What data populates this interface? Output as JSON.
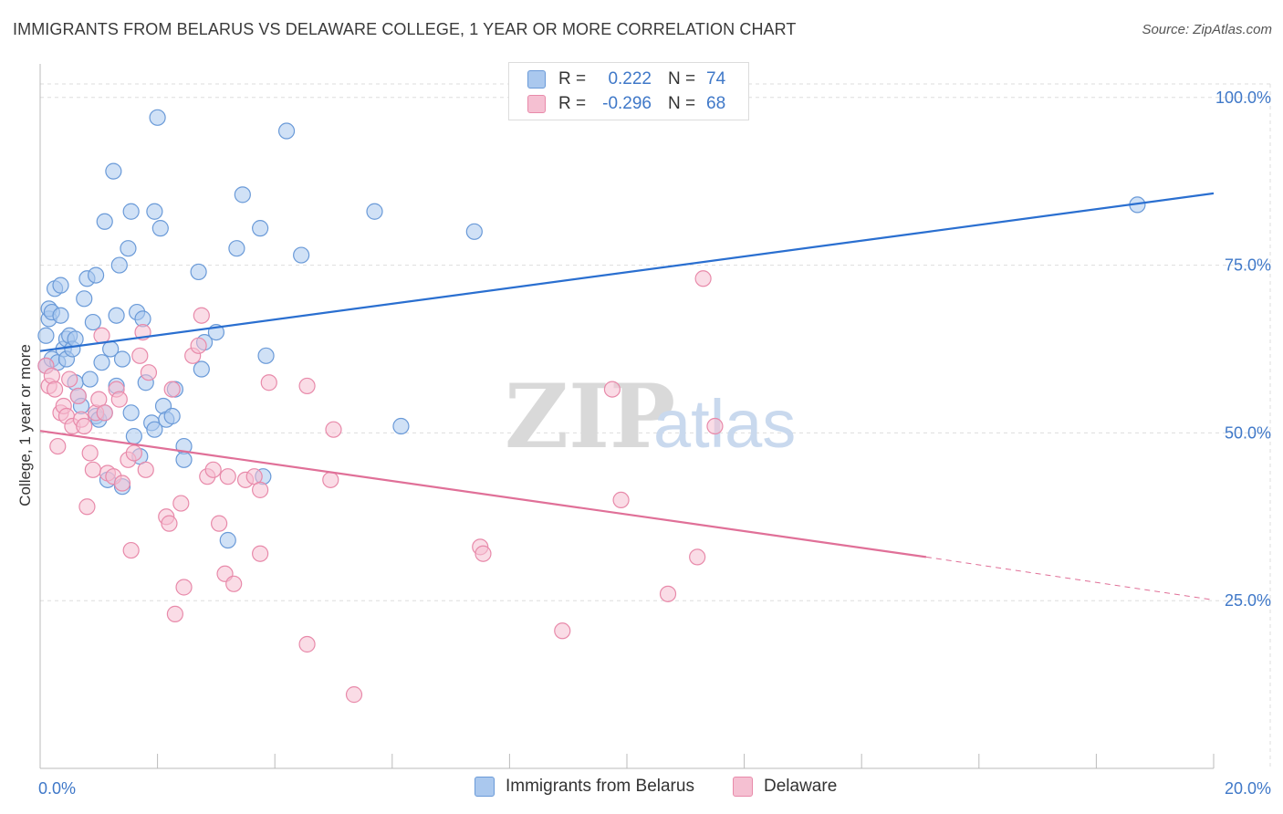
{
  "title": "IMMIGRANTS FROM BELARUS VS DELAWARE COLLEGE, 1 YEAR OR MORE CORRELATION CHART",
  "source": "Source: ZipAtlas.com",
  "watermark": {
    "zip": "ZIP",
    "atlas": "atlas"
  },
  "legend": {
    "belarus": {
      "r_label": "R =",
      "r_value": "0.222",
      "n_label": "N =",
      "n_value": "74"
    },
    "delaware": {
      "r_label": "R =",
      "r_value": "-0.296",
      "n_label": "N =",
      "n_value": "68"
    }
  },
  "bottom_legend": {
    "belarus": "Immigrants from Belarus",
    "delaware": "Delaware"
  },
  "colors": {
    "belarus_fill": "#aac8ee",
    "belarus_stroke": "#6a9ad8",
    "belarus_line": "#2a6fd0",
    "delaware_fill": "#f5c0d2",
    "delaware_stroke": "#e88aaa",
    "delaware_line": "#e07098",
    "tick_text": "#3f78c8",
    "grid": "#dddddd"
  },
  "chart_data": {
    "type": "scatter",
    "title": "IMMIGRANTS FROM BELARUS VS DELAWARE COLLEGE, 1 YEAR OR MORE CORRELATION CHART",
    "xlabel": "",
    "ylabel": "College, 1 year or more",
    "xlim": [
      0,
      20
    ],
    "ylim": [
      0,
      105
    ],
    "x_tick_labels": [
      {
        "value": 0,
        "label": "0.0%"
      },
      {
        "value": 20,
        "label": "20.0%"
      }
    ],
    "y_tick_labels": [
      {
        "value": 25,
        "label": "25.0%"
      },
      {
        "value": 50,
        "label": "50.0%"
      },
      {
        "value": 75,
        "label": "75.0%"
      },
      {
        "value": 100,
        "label": "100.0%"
      }
    ],
    "series": [
      {
        "name": "Immigrants from Belarus",
        "points": [
          [
            0.1,
            64.5
          ],
          [
            0.1,
            60
          ],
          [
            0.15,
            67
          ],
          [
            0.15,
            68.5
          ],
          [
            0.2,
            61
          ],
          [
            0.2,
            68
          ],
          [
            0.25,
            71.5
          ],
          [
            0.3,
            60.5
          ],
          [
            0.35,
            72
          ],
          [
            0.35,
            67.5
          ],
          [
            0.4,
            62.5
          ],
          [
            0.45,
            61
          ],
          [
            0.45,
            64
          ],
          [
            0.5,
            64.5
          ],
          [
            0.55,
            62.5
          ],
          [
            0.6,
            64
          ],
          [
            0.6,
            57.5
          ],
          [
            0.65,
            55.5
          ],
          [
            0.7,
            54
          ],
          [
            0.75,
            70
          ],
          [
            0.8,
            73
          ],
          [
            0.85,
            58
          ],
          [
            0.9,
            66.5
          ],
          [
            0.95,
            73.5
          ],
          [
            0.95,
            52.5
          ],
          [
            1.0,
            52
          ],
          [
            1.05,
            60.5
          ],
          [
            1.1,
            81.5
          ],
          [
            1.1,
            53
          ],
          [
            1.15,
            43
          ],
          [
            1.2,
            62.5
          ],
          [
            1.25,
            89
          ],
          [
            1.3,
            57
          ],
          [
            1.3,
            67.5
          ],
          [
            1.35,
            75
          ],
          [
            1.4,
            61
          ],
          [
            1.4,
            42
          ],
          [
            1.5,
            77.5
          ],
          [
            1.55,
            83
          ],
          [
            1.55,
            53
          ],
          [
            1.6,
            49.5
          ],
          [
            1.65,
            68
          ],
          [
            1.7,
            46.5
          ],
          [
            1.75,
            67
          ],
          [
            1.8,
            57.5
          ],
          [
            1.9,
            51.5
          ],
          [
            1.95,
            50.5
          ],
          [
            1.95,
            83
          ],
          [
            2.0,
            97
          ],
          [
            2.05,
            80.5
          ],
          [
            2.1,
            54
          ],
          [
            2.15,
            52
          ],
          [
            2.25,
            52.5
          ],
          [
            2.3,
            56.5
          ],
          [
            2.45,
            48
          ],
          [
            2.45,
            46
          ],
          [
            2.7,
            74
          ],
          [
            2.75,
            59.5
          ],
          [
            2.8,
            63.5
          ],
          [
            3.0,
            65
          ],
          [
            3.2,
            34
          ],
          [
            3.35,
            77.5
          ],
          [
            3.45,
            85.5
          ],
          [
            3.75,
            80.5
          ],
          [
            3.8,
            43.5
          ],
          [
            3.85,
            61.5
          ],
          [
            4.2,
            95
          ],
          [
            4.45,
            76.5
          ],
          [
            5.7,
            83
          ],
          [
            6.15,
            51
          ],
          [
            7.4,
            80
          ],
          [
            18.7,
            84
          ]
        ]
      },
      {
        "name": "Delaware",
        "points": [
          [
            0.1,
            60
          ],
          [
            0.15,
            57
          ],
          [
            0.2,
            58.5
          ],
          [
            0.25,
            56.5
          ],
          [
            0.3,
            48
          ],
          [
            0.35,
            53
          ],
          [
            0.4,
            54
          ],
          [
            0.45,
            52.5
          ],
          [
            0.5,
            58
          ],
          [
            0.55,
            51
          ],
          [
            0.65,
            55.5
          ],
          [
            0.7,
            52
          ],
          [
            0.75,
            51
          ],
          [
            0.8,
            39
          ],
          [
            0.85,
            47
          ],
          [
            0.9,
            44.5
          ],
          [
            0.95,
            53
          ],
          [
            1.0,
            55
          ],
          [
            1.05,
            64.5
          ],
          [
            1.1,
            53
          ],
          [
            1.15,
            44
          ],
          [
            1.25,
            43.5
          ],
          [
            1.3,
            56.5
          ],
          [
            1.35,
            55
          ],
          [
            1.4,
            42.5
          ],
          [
            1.5,
            46
          ],
          [
            1.55,
            32.5
          ],
          [
            1.6,
            47
          ],
          [
            1.7,
            61.5
          ],
          [
            1.75,
            65
          ],
          [
            1.8,
            44.5
          ],
          [
            1.85,
            59
          ],
          [
            2.15,
            37.5
          ],
          [
            2.2,
            36.5
          ],
          [
            2.25,
            56.5
          ],
          [
            2.3,
            23
          ],
          [
            2.4,
            39.5
          ],
          [
            2.45,
            27
          ],
          [
            2.6,
            61.5
          ],
          [
            2.7,
            63
          ],
          [
            2.75,
            67.5
          ],
          [
            2.85,
            43.5
          ],
          [
            2.95,
            44.5
          ],
          [
            3.05,
            36.5
          ],
          [
            3.15,
            29
          ],
          [
            3.2,
            43.5
          ],
          [
            3.3,
            27.5
          ],
          [
            3.5,
            43
          ],
          [
            3.65,
            43.5
          ],
          [
            3.75,
            41.5
          ],
          [
            3.75,
            32
          ],
          [
            3.9,
            57.5
          ],
          [
            4.55,
            57
          ],
          [
            4.55,
            18.5
          ],
          [
            4.95,
            43
          ],
          [
            5.0,
            50.5
          ],
          [
            5.35,
            11
          ],
          [
            7.5,
            33
          ],
          [
            7.55,
            32
          ],
          [
            8.9,
            20.5
          ],
          [
            9.75,
            56.5
          ],
          [
            9.9,
            40
          ],
          [
            10.7,
            26
          ],
          [
            11.2,
            31.5
          ],
          [
            11.3,
            73
          ],
          [
            11.5,
            51
          ]
        ]
      }
    ],
    "trend_lines": [
      {
        "series": "Immigrants from Belarus",
        "x": [
          0,
          20
        ],
        "y": [
          62.2,
          85.7
        ],
        "style": "solid"
      },
      {
        "series": "Delaware",
        "x": [
          0,
          15.1
        ],
        "y": [
          50.3,
          31.5
        ],
        "style": "solid"
      },
      {
        "series": "Delaware",
        "x": [
          15.1,
          20
        ],
        "y": [
          31.5,
          25.1
        ],
        "style": "dashed"
      }
    ],
    "grid": true,
    "legend_position": "top-center"
  }
}
